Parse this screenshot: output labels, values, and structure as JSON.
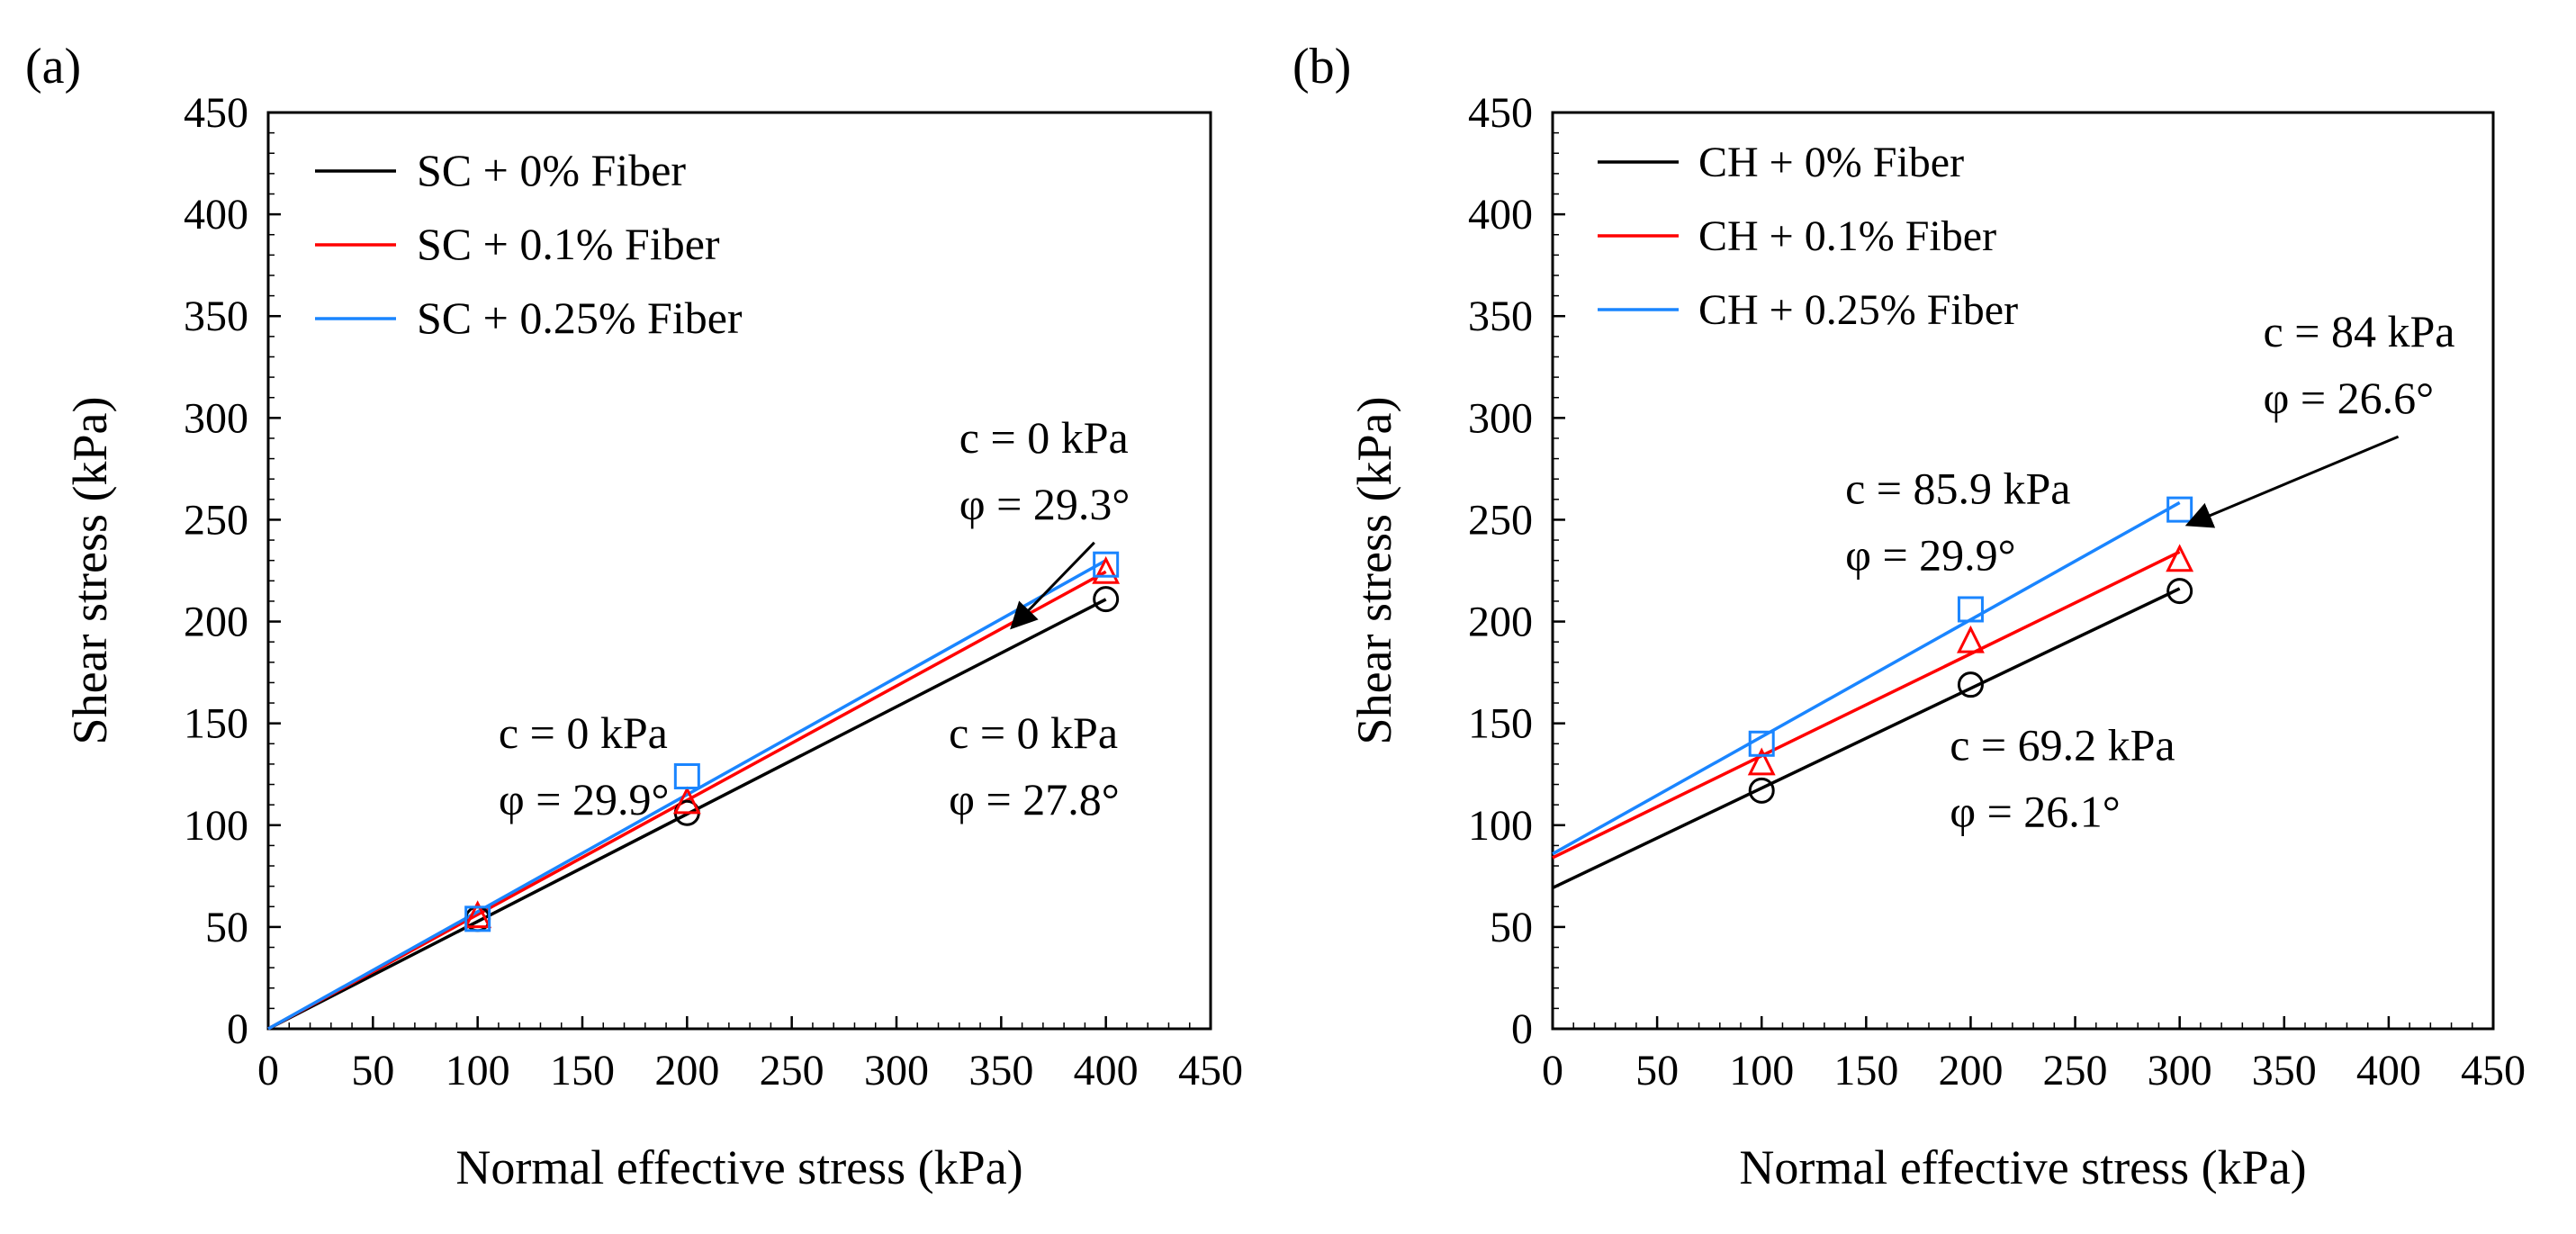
{
  "figure": {
    "panels": [
      "(a)",
      "(b)"
    ]
  },
  "colors": {
    "series0": "#000000",
    "series1": "#ff0000",
    "series2": "#1a85ff",
    "axes": "#000000"
  },
  "icons": {
    "series0": "circle-marker",
    "series1": "triangle-marker",
    "series2": "square-marker",
    "annotation": "arrow"
  },
  "chart_data": [
    {
      "type": "scatter",
      "panel_label": "(a)",
      "xlabel": "Normal effective stress (kPa)",
      "ylabel": "Shear stress (kPa)",
      "xlim": [
        0,
        450
      ],
      "ylim": [
        0,
        450
      ],
      "xticks": [
        0,
        50,
        100,
        150,
        200,
        250,
        300,
        350,
        400,
        450
      ],
      "yticks": [
        0,
        50,
        100,
        150,
        200,
        250,
        300,
        350,
        400,
        450
      ],
      "grid": false,
      "legend_position": "top-left",
      "series": [
        {
          "name": "SC + 0% Fiber",
          "marker": "circle",
          "x": [
            100,
            200,
            400
          ],
          "y": [
            54,
            106,
            211
          ],
          "fit": {
            "c": 0,
            "phi": 27.8
          }
        },
        {
          "name": "SC + 0.1% Fiber",
          "marker": "triangle",
          "x": [
            100,
            200,
            400
          ],
          "y": [
            55,
            111,
            224
          ],
          "fit": {
            "c": 0,
            "phi": 29.3
          }
        },
        {
          "name": "SC + 0.25% Fiber",
          "marker": "square",
          "x": [
            100,
            200,
            400
          ],
          "y": [
            54,
            124,
            228
          ],
          "fit": {
            "c": 0,
            "phi": 29.9
          }
        }
      ],
      "annotations": [
        {
          "lines": [
            "c = 0 kPa",
            "φ = 29.9°"
          ],
          "at": [
            110,
            138
          ]
        },
        {
          "lines": [
            "c = 0 kPa",
            "φ = 29.3°"
          ],
          "at": [
            330,
            283
          ],
          "arrow_to": [
            356,
            198
          ]
        },
        {
          "lines": [
            "c = 0 kPa",
            "φ = 27.8°"
          ],
          "at": [
            325,
            138
          ]
        }
      ]
    },
    {
      "type": "scatter",
      "panel_label": "(b)",
      "xlabel": "Normal effective stress (kPa)",
      "ylabel": "Shear stress (kPa)",
      "xlim": [
        0,
        450
      ],
      "ylim": [
        0,
        450
      ],
      "xticks": [
        0,
        50,
        100,
        150,
        200,
        250,
        300,
        350,
        400,
        450
      ],
      "yticks": [
        0,
        50,
        100,
        150,
        200,
        250,
        300,
        350,
        400,
        450
      ],
      "grid": false,
      "legend_position": "top-left",
      "series": [
        {
          "name": "CH + 0% Fiber",
          "marker": "circle",
          "x": [
            100,
            200,
            300
          ],
          "y": [
            117,
            169,
            215
          ],
          "fit": {
            "c": 69.2,
            "phi": 26.1
          }
        },
        {
          "name": "CH + 0.1% Fiber",
          "marker": "triangle",
          "x": [
            100,
            200,
            300
          ],
          "y": [
            130,
            190,
            230
          ],
          "fit": {
            "c": 84,
            "phi": 26.6
          }
        },
        {
          "name": "CH + 0.25% Fiber",
          "marker": "square",
          "x": [
            100,
            200,
            300
          ],
          "y": [
            140,
            206,
            255
          ],
          "fit": {
            "c": 85.9,
            "phi": 29.9
          }
        }
      ],
      "annotations": [
        {
          "lines": [
            "c = 84 kPa",
            "φ = 26.6°"
          ],
          "at": [
            340,
            335
          ],
          "arrow_to": [
            305,
            248
          ]
        },
        {
          "lines": [
            "c = 85.9 kPa",
            "φ = 29.9°"
          ],
          "at": [
            140,
            258
          ]
        },
        {
          "lines": [
            "c = 69.2 kPa",
            "φ = 26.1°"
          ],
          "at": [
            190,
            132
          ]
        }
      ]
    }
  ]
}
